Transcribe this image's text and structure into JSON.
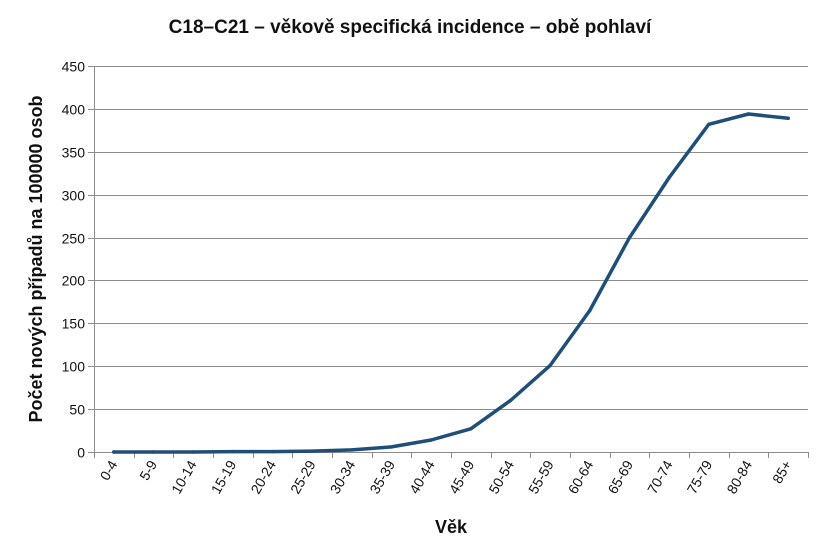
{
  "chart_data": {
    "type": "line",
    "title": "C18–C21 – věkově specifická incidence – obě pohlaví",
    "xlabel": "Věk",
    "ylabel": "Počet nových případů na 100000 osob",
    "categories": [
      "0-4",
      "5-9",
      "10-14",
      "15-19",
      "20-24",
      "25-29",
      "30-34",
      "35-39",
      "40-44",
      "45-49",
      "50-54",
      "55-59",
      "60-64",
      "65-69",
      "70-74",
      "75-79",
      "80-84",
      "85+"
    ],
    "series": [
      {
        "values": [
          0,
          0,
          0,
          0.5,
          0.5,
          1,
          2.5,
          6,
          14,
          27,
          60,
          101,
          165,
          250,
          320,
          382,
          394,
          389
        ],
        "color": "#1f4e79"
      }
    ],
    "ylim": [
      0,
      450
    ],
    "yticks": [
      0,
      50,
      100,
      150,
      200,
      250,
      300,
      350,
      400,
      450
    ],
    "grid": true,
    "legend": "none"
  }
}
